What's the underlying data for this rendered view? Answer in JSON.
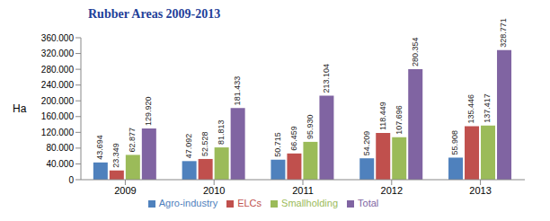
{
  "chart_data": {
    "type": "bar",
    "title": "Rubber Areas 2009-2013",
    "y_label": "Ha",
    "categories": [
      "2009",
      "2010",
      "2011",
      "2012",
      "2013"
    ],
    "series": [
      {
        "name": "Agro-industry",
        "color": "#4f81bd",
        "values": [
          43694,
          47092,
          50715,
          54209,
          55908
        ],
        "value_labels": [
          "43.694",
          "47.092",
          "50.715",
          "54.209",
          "55.908"
        ]
      },
      {
        "name": "ELCs",
        "color": "#c0504d",
        "values": [
          23349,
          52528,
          66459,
          118449,
          135446
        ],
        "value_labels": [
          "23.349",
          "52.528",
          "66.459",
          "118.449",
          "135.446"
        ]
      },
      {
        "name": "Smallholding",
        "color": "#9bbb59",
        "values": [
          62877,
          81813,
          95930,
          107696,
          137417
        ],
        "value_labels": [
          "62.877",
          "81.813",
          "95.930",
          "107.696",
          "137.417"
        ]
      },
      {
        "name": "Total",
        "color": "#8064a2",
        "values": [
          129920,
          181433,
          213104,
          280354,
          328771
        ],
        "value_labels": [
          "129.920",
          "181.433",
          "213.104",
          "280.354",
          "328.771"
        ]
      }
    ],
    "ylim": [
      0,
      360000
    ],
    "yticks": [
      0,
      {
        "value": 40000,
        "label": "40.000"
      },
      {
        "value": 80000,
        "label": "80.000"
      },
      {
        "value": 120000,
        "label": "120.000"
      },
      {
        "value": 160000,
        "label": "160.000"
      },
      {
        "value": 200000,
        "label": "200.000"
      },
      {
        "value": 240000,
        "label": "240.000"
      },
      {
        "value": 280000,
        "label": "280.000"
      },
      {
        "value": 320000,
        "label": "320.000"
      },
      {
        "value": 360000,
        "label": "360.000"
      }
    ],
    "grid": false,
    "legend": "bottom",
    "data_labels": true
  }
}
